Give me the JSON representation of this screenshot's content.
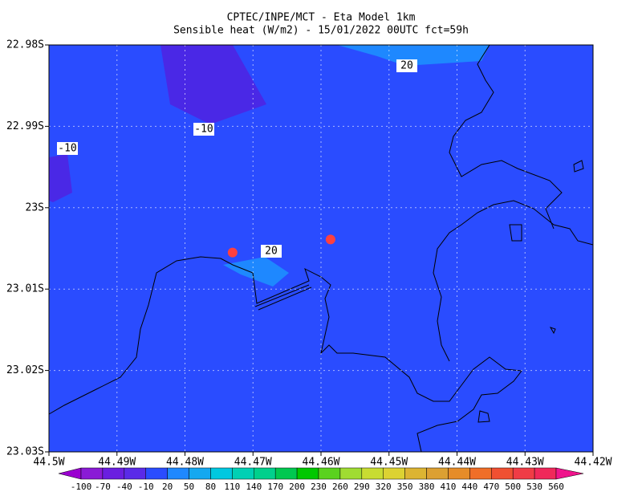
{
  "chart_data": {
    "type": "map",
    "title": "CPTEC/INPE/MCT -  Eta Model 1km",
    "subtitle": "Sensible heat (W/m2) - 15/01/2022 00UTC fct=59h",
    "background_color": "#2a4cff",
    "xlim": [
      -44.5,
      -44.42
    ],
    "xticks": [
      {
        "value": -44.5,
        "label": "44.5W"
      },
      {
        "value": -44.49,
        "label": "44.49W"
      },
      {
        "value": -44.48,
        "label": "44.48W"
      },
      {
        "value": -44.47,
        "label": "44.47W"
      },
      {
        "value": -44.46,
        "label": "44.46W"
      },
      {
        "value": -44.45,
        "label": "44.45W"
      },
      {
        "value": -44.44,
        "label": "44.44W"
      },
      {
        "value": -44.43,
        "label": "44.43W"
      },
      {
        "value": -44.42,
        "label": "44.42W"
      }
    ],
    "ylim": [
      -23.03,
      -22.98
    ],
    "yticks": [
      {
        "value": -22.98,
        "label": "22.98S"
      },
      {
        "value": -22.99,
        "label": "22.99S"
      },
      {
        "value": -23.0,
        "label": "23S"
      },
      {
        "value": -23.01,
        "label": "23.01S"
      },
      {
        "value": -23.02,
        "label": "23.02S"
      },
      {
        "value": -23.03,
        "label": "23.03S"
      }
    ],
    "grid": true,
    "contour_labels": [
      20,
      -10,
      -10,
      20
    ],
    "points": {
      "color": "#ff4040",
      "x": [
        -44.473,
        -44.4586
      ],
      "y": [
        -23.0055,
        -23.0039
      ]
    },
    "colorbar": {
      "levels": [
        -100,
        -70,
        -40,
        -10,
        20,
        50,
        80,
        110,
        140,
        170,
        200,
        230,
        260,
        290,
        320,
        350,
        380,
        410,
        440,
        470,
        500,
        530,
        560
      ],
      "colors": [
        "#9a00d0",
        "#8a1ad6",
        "#6a1ee0",
        "#5a2ae8",
        "#2a4cff",
        "#1e88ff",
        "#14a8f0",
        "#00c8e0",
        "#00d0b4",
        "#00d08c",
        "#00c850",
        "#00c800",
        "#5ad21e",
        "#a0dc32",
        "#c8dc32",
        "#dcd232",
        "#dcb432",
        "#dca032",
        "#e68c28",
        "#f06e28",
        "#f05032",
        "#f03c46",
        "#f0285a",
        "#f0148c"
      ]
    }
  }
}
